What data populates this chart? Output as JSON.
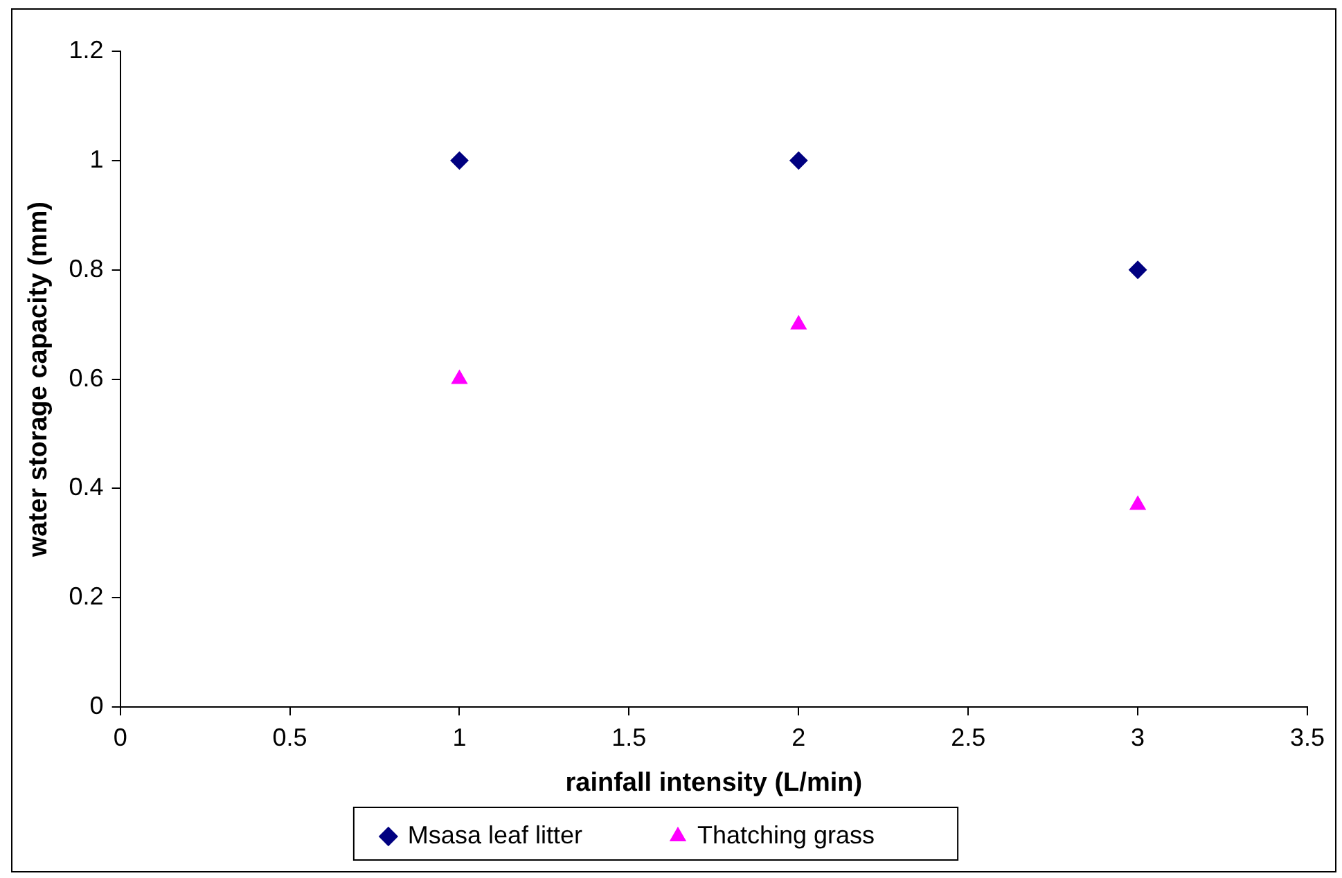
{
  "chart_data": {
    "type": "scatter",
    "xlabel": "rainfall intensity (L/min)",
    "ylabel": "water storage capacity (mm)",
    "x": [
      1,
      2,
      3
    ],
    "series": [
      {
        "name": "Msasa leaf litter",
        "color": "#000080",
        "marker": "diamond",
        "values": [
          1,
          1,
          0.8
        ]
      },
      {
        "name": "Thatching grass",
        "color": "#ff00ff",
        "marker": "triangle",
        "values": [
          0.6,
          0.7,
          0.37
        ]
      }
    ],
    "xlim": [
      0,
      3.5
    ],
    "xticks": [
      0,
      0.5,
      1,
      1.5,
      2,
      2.5,
      3,
      3.5
    ],
    "ylim": [
      0,
      1.2
    ],
    "yticks": [
      0,
      0.2,
      0.4,
      0.6,
      0.8,
      1,
      1.2
    ],
    "grid": false,
    "legend": "bottom"
  }
}
